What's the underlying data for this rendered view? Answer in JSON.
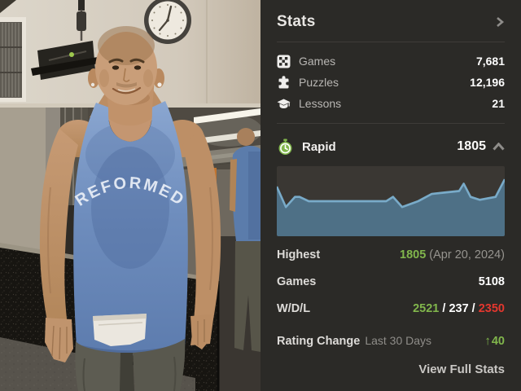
{
  "panel": {
    "title": "Stats",
    "summary": [
      {
        "label": "Games",
        "value": "7,681",
        "icon": "games-board-icon"
      },
      {
        "label": "Puzzles",
        "value": "12,196",
        "icon": "puzzle-icon"
      },
      {
        "label": "Lessons",
        "value": "21",
        "icon": "graduation-cap-icon"
      }
    ],
    "rapid": {
      "label": "Rapid",
      "value": "1805"
    },
    "details": {
      "highest_label": "Highest",
      "highest_value": "1805",
      "highest_date": "(Apr 20, 2024)",
      "games_label": "Games",
      "games_value": "5108",
      "wdl_label": "W/D/L",
      "wins": "2521",
      "sep1": " / ",
      "draws": "237",
      "sep2": " / ",
      "losses": "2350",
      "rating_change_label": "Rating Change",
      "rating_change_period": "Last 30 Days",
      "rating_change_arrow": "↑",
      "rating_change_value": "40"
    },
    "view_full_stats": "View Full Stats"
  },
  "photo": {
    "shirt_text": "REFORMED"
  },
  "colors": {
    "panel_bg": "#2b2a27",
    "accent_green": "#81b64c",
    "loss_red": "#e3372e",
    "chart_bg": "#3a3733",
    "chart_line": "#79abc9",
    "chart_fill": "#4e7086"
  },
  "chart_data": {
    "type": "area",
    "title": "Rapid rating trend",
    "x_pct": [
      0,
      4,
      8,
      10,
      14,
      48,
      51,
      55,
      62,
      68,
      74,
      80,
      82,
      85,
      89,
      96,
      100
    ],
    "y": [
      1760,
      1690,
      1725,
      1725,
      1710,
      1710,
      1725,
      1690,
      1710,
      1735,
      1740,
      1745,
      1770,
      1725,
      1715,
      1725,
      1785
    ],
    "ylim": [
      1590,
      1830
    ],
    "xlabel": "",
    "ylabel": "",
    "grid": false,
    "legend": "none"
  }
}
